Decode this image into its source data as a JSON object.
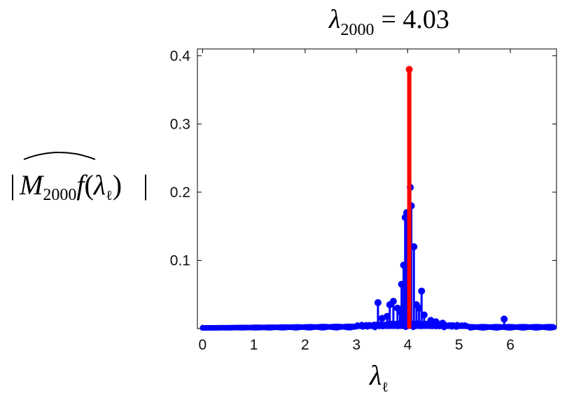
{
  "chart_data": {
    "type": "stem",
    "title": {
      "symbol": "λ",
      "subscript": "2000",
      "text": "= 4.03"
    },
    "ylabel": {
      "symbol": "M",
      "subscript": "2000",
      "func": "f",
      "paren_open": "(",
      "lambda": "λ",
      "lambda_sub": "ℓ",
      "paren_close": ")",
      "bars": "|"
    },
    "xlabel": {
      "symbol": "λ",
      "subscript": "ℓ"
    },
    "xlim": [
      -0.1,
      6.9
    ],
    "ylim": [
      0,
      0.41
    ],
    "xticks": [
      "0",
      "1",
      "2",
      "3",
      "4",
      "5",
      "6"
    ],
    "yticks": [
      "0.1",
      "0.2",
      "0.3",
      "0.4"
    ],
    "highlight": {
      "x": 4.03,
      "y": 0.38,
      "color": "#ff0000"
    },
    "series_color": "#0000ff",
    "peak_points": [
      {
        "x": 3.42,
        "y": 0.038
      },
      {
        "x": 3.5,
        "y": 0.015
      },
      {
        "x": 3.6,
        "y": 0.018
      },
      {
        "x": 3.65,
        "y": 0.035
      },
      {
        "x": 3.72,
        "y": 0.04
      },
      {
        "x": 3.8,
        "y": 0.03
      },
      {
        "x": 3.85,
        "y": 0.025
      },
      {
        "x": 3.88,
        "y": 0.065
      },
      {
        "x": 3.92,
        "y": 0.093
      },
      {
        "x": 3.95,
        "y": 0.163
      },
      {
        "x": 3.98,
        "y": 0.17
      },
      {
        "x": 4.05,
        "y": 0.207
      },
      {
        "x": 4.07,
        "y": 0.18
      },
      {
        "x": 4.12,
        "y": 0.12
      },
      {
        "x": 4.17,
        "y": 0.035
      },
      {
        "x": 4.22,
        "y": 0.03
      },
      {
        "x": 4.27,
        "y": 0.055
      },
      {
        "x": 4.32,
        "y": 0.02
      },
      {
        "x": 4.45,
        "y": 0.012
      },
      {
        "x": 4.55,
        "y": 0.01
      },
      {
        "x": 4.68,
        "y": 0.008
      },
      {
        "x": 5.88,
        "y": 0.014
      }
    ]
  }
}
